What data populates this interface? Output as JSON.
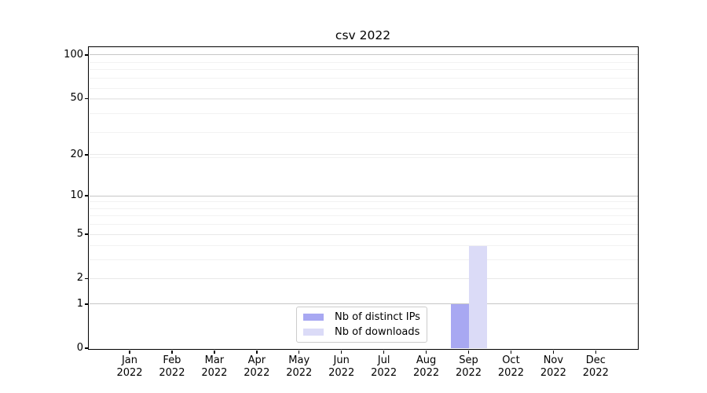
{
  "title": "csv 2022",
  "colors": {
    "bar_distinct_ips": "#a8a8f2",
    "bar_downloads": "#dbdbf7",
    "grid_emphasis": "#c6c6c6",
    "grid_labeled": "#e9e9e9",
    "grid_minor": "#f2f2f2",
    "axis": "#000000",
    "legend_border": "#cccccc"
  },
  "legend": {
    "items": [
      {
        "label": "Nb of distinct IPs",
        "color": "#a8a8f2"
      },
      {
        "label": "Nb of downloads",
        "color": "#dbdbf7"
      }
    ]
  },
  "y_axis": {
    "ticks": [
      {
        "value": 0,
        "label": "0"
      },
      {
        "value": 1,
        "label": "1"
      },
      {
        "value": 2,
        "label": "2"
      },
      {
        "value": 5,
        "label": "5"
      },
      {
        "value": 10,
        "label": "10"
      },
      {
        "value": 20,
        "label": "20"
      },
      {
        "value": 50,
        "label": "50"
      },
      {
        "value": 100,
        "label": "100"
      }
    ],
    "emphasis_gridline_values": [
      1,
      10,
      100
    ],
    "minor_gridline_values": [
      3,
      4,
      6,
      7,
      8,
      9,
      19,
      29,
      39,
      49,
      59,
      69,
      79,
      89
    ]
  },
  "x_axis": {
    "ticks": [
      {
        "line1": "Jan",
        "line2": "2022"
      },
      {
        "line1": "Feb",
        "line2": "2022"
      },
      {
        "line1": "Mar",
        "line2": "2022"
      },
      {
        "line1": "Apr",
        "line2": "2022"
      },
      {
        "line1": "May",
        "line2": "2022"
      },
      {
        "line1": "Jun",
        "line2": "2022"
      },
      {
        "line1": "Jul",
        "line2": "2022"
      },
      {
        "line1": "Aug",
        "line2": "2022"
      },
      {
        "line1": "Sep",
        "line2": "2022"
      },
      {
        "line1": "Oct",
        "line2": "2022"
      },
      {
        "line1": "Nov",
        "line2": "2022"
      },
      {
        "line1": "Dec",
        "line2": "2022"
      }
    ]
  },
  "chart_data": {
    "type": "bar",
    "title": "csv 2022",
    "categories": [
      "Jan 2022",
      "Feb 2022",
      "Mar 2022",
      "Apr 2022",
      "May 2022",
      "Jun 2022",
      "Jul 2022",
      "Aug 2022",
      "Sep 2022",
      "Oct 2022",
      "Nov 2022",
      "Dec 2022"
    ],
    "series": [
      {
        "name": "Nb of distinct IPs",
        "color": "#a8a8f2",
        "values": [
          0,
          0,
          0,
          0,
          0,
          0,
          0,
          0,
          1,
          0,
          0,
          0
        ]
      },
      {
        "name": "Nb of downloads",
        "color": "#dbdbf7",
        "values": [
          0,
          0,
          0,
          0,
          0,
          0,
          0,
          0,
          4,
          0,
          0,
          0
        ]
      }
    ],
    "xlabel": "",
    "ylabel": "",
    "yscale": "log1p",
    "y_tick_values": [
      0,
      1,
      2,
      5,
      10,
      20,
      50,
      100
    ],
    "ylim": [
      0,
      113
    ],
    "grid": "horizontal",
    "legend_position": "lower center"
  }
}
